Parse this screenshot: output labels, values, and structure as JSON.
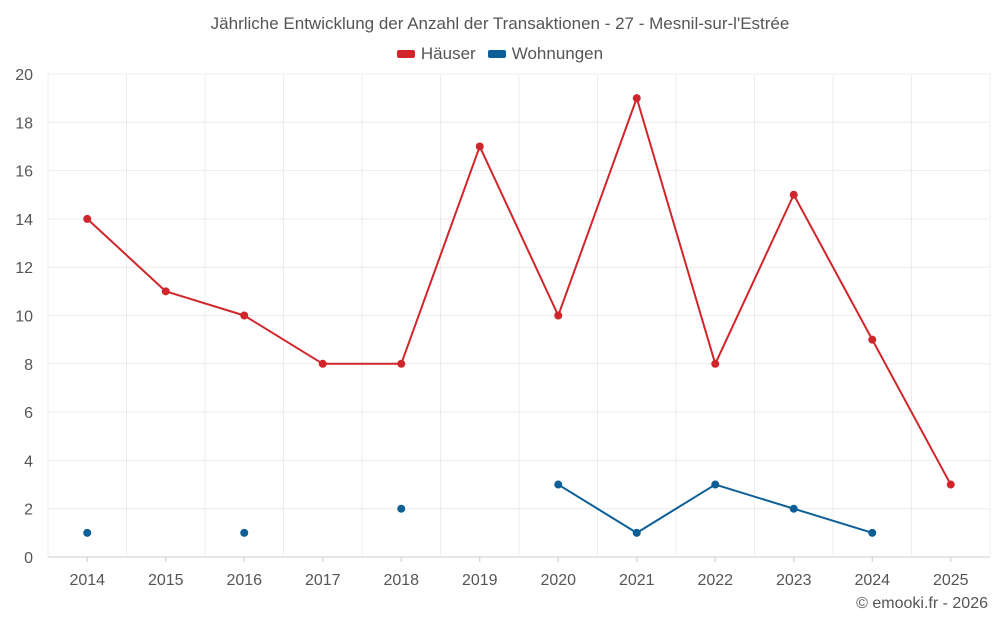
{
  "chart_data": {
    "type": "line",
    "title": "Jährliche Entwicklung der Anzahl der Transaktionen - 27 - Mesnil-sur-l'Estrée",
    "categories": [
      "2014",
      "2015",
      "2016",
      "2017",
      "2018",
      "2019",
      "2020",
      "2021",
      "2022",
      "2023",
      "2024",
      "2025"
    ],
    "ylim": [
      0,
      20
    ],
    "yticks": [
      "0",
      "2",
      "4",
      "6",
      "8",
      "10",
      "12",
      "14",
      "16",
      "18",
      "20"
    ],
    "xlabel": "",
    "ylabel": "",
    "grid": true,
    "legend_position": "top-center",
    "series": [
      {
        "name": "Häuser",
        "color": "#d0262b",
        "values": [
          14,
          11,
          10,
          8,
          8,
          17,
          10,
          19,
          8,
          15,
          9,
          3
        ]
      },
      {
        "name": "Wohnungen",
        "color": "#0c5f96",
        "values": [
          1,
          null,
          1,
          null,
          2,
          null,
          3,
          1,
          3,
          2,
          1,
          null
        ]
      }
    ]
  },
  "credit": "© emooki.fr - 2026"
}
